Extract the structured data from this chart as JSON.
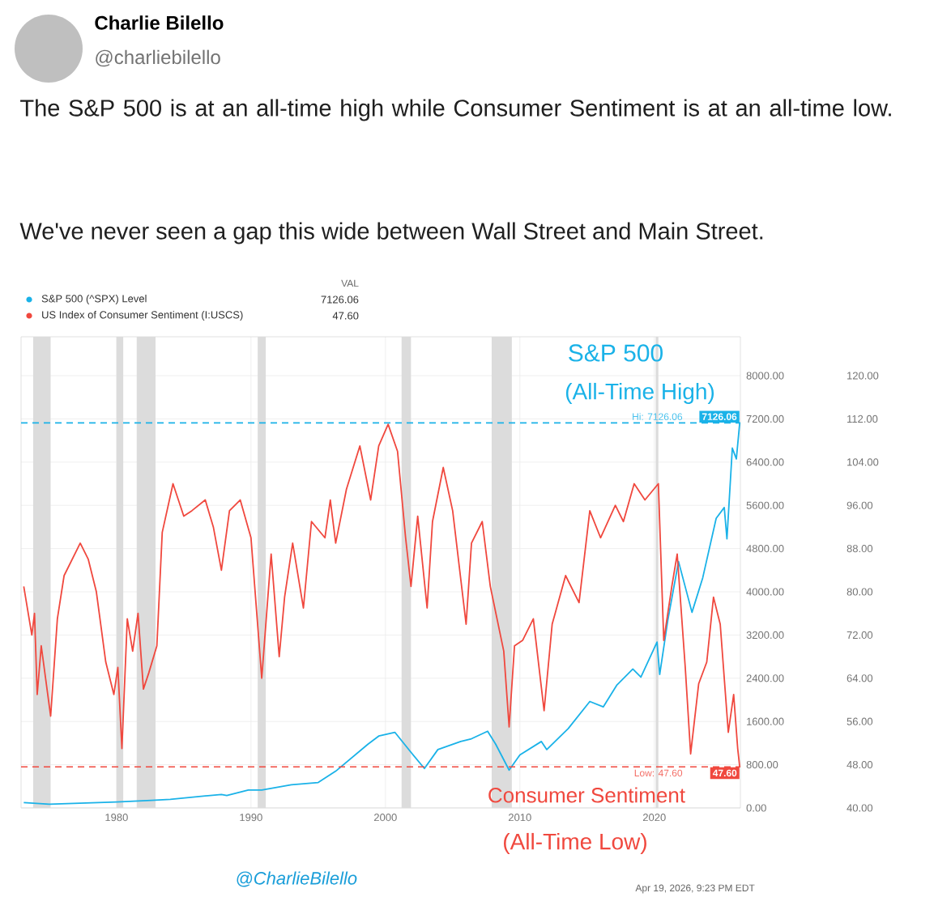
{
  "chart_data": {
    "type": "line",
    "title": "The S&P 500 is at an all-time high while Consumer Sentiment is at an all-time low.",
    "subtitle": "We've never seen a gap this wide between Wall Street and Main Street.",
    "legend_title": "VAL",
    "legend": "top left",
    "grid": true,
    "xlim": [
      1972.9,
      2026.4
    ],
    "xticks": [
      1980,
      1990,
      2000,
      2010,
      2020
    ],
    "ylim": [
      0,
      8720
    ],
    "yticks": [
      {
        "value": 0,
        "label": "0.00"
      },
      {
        "value": 800,
        "label": "800.00"
      },
      {
        "value": 1600,
        "label": "1600.00"
      },
      {
        "value": 2400,
        "label": "2400.00"
      },
      {
        "value": 3200,
        "label": "3200.00"
      },
      {
        "value": 4000,
        "label": "4000.00"
      },
      {
        "value": 4800,
        "label": "4800.00"
      },
      {
        "value": 5600,
        "label": "5600.00"
      },
      {
        "value": 6400,
        "label": "6400.00"
      },
      {
        "value": 7200,
        "label": "7200.00"
      },
      {
        "value": 8000,
        "label": "8000.00"
      }
    ],
    "y2lim": [
      40,
      127.2
    ],
    "y2ticks": [
      {
        "value": 40,
        "label": "40.00"
      },
      {
        "value": 48,
        "label": "48.00"
      },
      {
        "value": 56,
        "label": "56.00"
      },
      {
        "value": 64,
        "label": "64.00"
      },
      {
        "value": 72,
        "label": "72.00"
      },
      {
        "value": 80,
        "label": "80.00"
      },
      {
        "value": 88,
        "label": "88.00"
      },
      {
        "value": 96,
        "label": "96.00"
      },
      {
        "value": 104,
        "label": "104.00"
      },
      {
        "value": 112,
        "label": "112.00"
      },
      {
        "value": 120,
        "label": "120.00"
      }
    ],
    "series": [
      {
        "name": "S&P 500 (^SPX) Level",
        "color": "#1ab2e8",
        "axis": "y",
        "x": [
          1973.1,
          1975.0,
          1980.0,
          1982.6,
          1984.0,
          1987.8,
          1988.2,
          1989.8,
          1990.8,
          1993.0,
          1995.0,
          1996.3,
          1997.5,
          1998.7,
          1999.5,
          2000.7,
          2001.9,
          2002.9,
          2003.9,
          2005.6,
          2006.4,
          2007.6,
          2008.2,
          2009.2,
          2010.0,
          2011.6,
          2012.0,
          2013.6,
          2015.2,
          2016.2,
          2017.2,
          2018.4,
          2019.0,
          2020.2,
          2020.4,
          2021.0,
          2021.8,
          2022.8,
          2023.6,
          2024.6,
          2025.2,
          2025.4,
          2025.8,
          2026.1,
          2026.35
        ],
        "values": [
          100,
          70,
          110,
          140,
          160,
          250,
          230,
          330,
          330,
          430,
          470,
          680,
          930,
          1180,
          1330,
          1400,
          1030,
          730,
          1080,
          1230,
          1280,
          1420,
          1180,
          700,
          980,
          1230,
          1080,
          1470,
          1970,
          1870,
          2270,
          2570,
          2420,
          3070,
          2470,
          3470,
          4560,
          3620,
          4260,
          5360,
          5560,
          4980,
          6660,
          6460,
          7126.06
        ],
        "value_labels": [
          null,
          null,
          null,
          null,
          null,
          null,
          null,
          null,
          null,
          null,
          null,
          null,
          null,
          null,
          null,
          null,
          null,
          null,
          null,
          null,
          null,
          null,
          null,
          null,
          null,
          null,
          null,
          null,
          null,
          null,
          null,
          null,
          null,
          null,
          null,
          null,
          null,
          null,
          null,
          null,
          null,
          null,
          null,
          null,
          "7126.06"
        ]
      },
      {
        "name": "US Index of Consumer Sentiment (I:USCS)",
        "color": "#f0483e",
        "axis": "y2",
        "x": [
          1973.1,
          1973.7,
          1973.9,
          1974.1,
          1974.4,
          1975.1,
          1975.6,
          1976.1,
          1977.3,
          1977.9,
          1978.5,
          1979.2,
          1979.8,
          1980.1,
          1980.4,
          1980.8,
          1981.2,
          1981.6,
          1982.0,
          1982.4,
          1983.0,
          1983.4,
          1984.2,
          1985.0,
          1985.6,
          1986.6,
          1987.2,
          1987.8,
          1988.4,
          1989.2,
          1990.0,
          1990.8,
          1991.5,
          1992.1,
          1992.5,
          1993.1,
          1993.9,
          1994.5,
          1995.5,
          1995.9,
          1996.3,
          1997.1,
          1998.1,
          1998.9,
          1999.5,
          2000.2,
          2000.9,
          2001.5,
          2001.9,
          2002.4,
          2003.1,
          2003.5,
          2004.3,
          2005.0,
          2006.0,
          2006.4,
          2007.2,
          2007.8,
          2008.8,
          2009.2,
          2009.6,
          2010.2,
          2011.0,
          2011.8,
          2012.4,
          2013.4,
          2014.4,
          2015.2,
          2016.0,
          2017.1,
          2017.7,
          2018.5,
          2019.3,
          2020.3,
          2020.7,
          2021.3,
          2021.7,
          2022.3,
          2022.7,
          2023.3,
          2023.9,
          2024.4,
          2024.9,
          2025.5,
          2025.9,
          2026.2,
          2026.35
        ],
        "values": [
          81,
          72,
          76,
          61,
          70,
          57,
          75,
          83,
          89,
          86,
          80,
          67,
          61,
          66,
          51,
          75,
          69,
          76,
          62,
          65,
          70,
          91,
          100,
          94,
          95,
          97,
          92,
          84,
          95,
          97,
          90,
          64,
          87,
          68,
          79,
          89,
          77,
          93,
          90,
          97,
          89,
          99,
          107,
          97,
          107,
          111,
          106,
          90,
          81,
          94,
          77,
          93,
          103,
          95,
          74,
          89,
          93,
          81,
          69,
          55,
          70,
          71,
          75,
          58,
          74,
          83,
          78,
          95,
          90,
          96,
          93,
          100,
          97,
          100,
          71,
          81,
          87,
          66,
          50,
          63,
          67,
          79,
          74,
          54,
          61,
          51,
          47.6
        ],
        "value_labels": [
          null,
          null,
          null,
          null,
          null,
          null,
          null,
          null,
          null,
          null,
          null,
          null,
          null,
          null,
          null,
          null,
          null,
          null,
          null,
          null,
          null,
          null,
          null,
          null,
          null,
          null,
          null,
          null,
          null,
          null,
          null,
          null,
          null,
          null,
          null,
          null,
          null,
          null,
          null,
          null,
          null,
          null,
          null,
          null,
          null,
          null,
          null,
          null,
          null,
          null,
          null,
          null,
          null,
          null,
          null,
          null,
          null,
          null,
          null,
          null,
          null,
          null,
          null,
          null,
          null,
          null,
          null,
          null,
          null,
          null,
          null,
          null,
          null,
          null,
          null,
          null,
          null,
          null,
          null,
          null,
          null,
          null,
          null,
          null,
          null,
          null,
          "47.60"
        ]
      }
    ],
    "ref_lines": [
      {
        "axis": "y",
        "value": 7126.06,
        "label": "Hi: 7126.06",
        "color": "#1ab2e8",
        "line_style": "dashed"
      },
      {
        "axis": "y2",
        "value": 47.6,
        "label": "Low: 47.60",
        "color": "#f0483e",
        "line_style": "dashed"
      }
    ],
    "bands": [
      {
        "axis": "x",
        "from": 1973.8,
        "to": 1975.1,
        "color": "#dcdcdc"
      },
      {
        "axis": "x",
        "from": 1980.0,
        "to": 1980.5,
        "color": "#dcdcdc"
      },
      {
        "axis": "x",
        "from": 1981.5,
        "to": 1982.9,
        "color": "#dcdcdc"
      },
      {
        "axis": "x",
        "from": 1990.5,
        "to": 1991.1,
        "color": "#dcdcdc"
      },
      {
        "axis": "x",
        "from": 2001.2,
        "to": 2001.9,
        "color": "#dcdcdc"
      },
      {
        "axis": "x",
        "from": 2007.9,
        "to": 2009.4,
        "color": "#dcdcdc"
      },
      {
        "axis": "x",
        "from": 2020.1,
        "to": 2020.3,
        "color": "#dcdcdc"
      }
    ],
    "annotations": [
      "S&P 500",
      "(All-Time High)",
      "Consumer Sentiment",
      "(All-Time Low)",
      "Charlie Bilello",
      "@charliebilello",
      "@CharlieBilello",
      "Apr 19, 2026, 9:23 PM EDT"
    ]
  }
}
